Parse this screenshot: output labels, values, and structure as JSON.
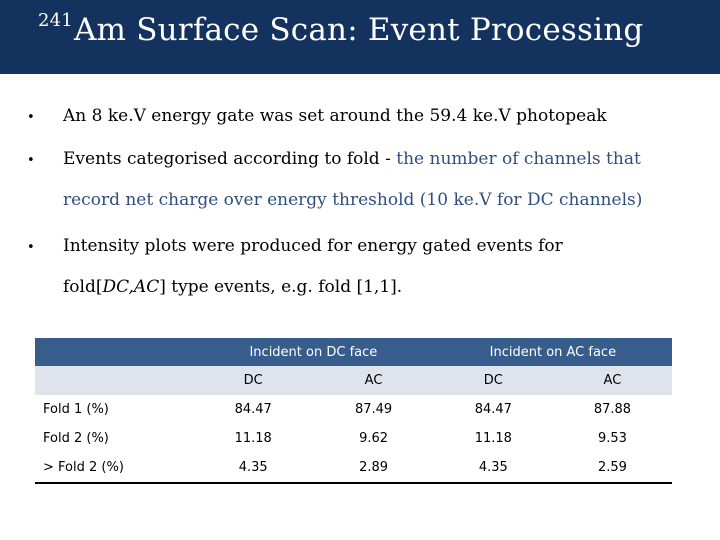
{
  "header": {
    "title_sup": "241",
    "title_main": "Am Surface Scan: Event Processing"
  },
  "bullets": {
    "b1": "An 8 ke.V energy gate was set around the 59.4 ke.V photopeak",
    "b2_part1": "Events categorised according to fold - ",
    "b2_part2": "the number of channels that",
    "b2_line2": "record net charge over energy threshold (10 ke.V for DC channels)",
    "b3_line1": "Intensity plots were produced for energy gated events for",
    "b3_line2_pre": "fold[",
    "b3_line2_ital": "DC,AC",
    "b3_line2_post": "]  type events, e.g. fold [1,1]."
  },
  "table": {
    "group_headers": [
      "Incident on DC face",
      "Incident on AC face"
    ],
    "sub_headers": [
      "DC",
      "AC",
      "DC",
      "AC"
    ],
    "rows": [
      {
        "label": "Fold 1 (%)",
        "values": [
          "84.47",
          "87.49",
          "84.47",
          "87.88"
        ]
      },
      {
        "label": "Fold 2 (%)",
        "values": [
          "11.18",
          "9.62",
          "11.18",
          "9.53"
        ]
      },
      {
        "label": "> Fold 2 (%)",
        "values": [
          "4.35",
          "2.89",
          "4.35",
          "2.59"
        ]
      }
    ]
  },
  "colors": {
    "title_bar": "#14325e",
    "accent_text": "#2e4f7e",
    "table_header": "#375d8d",
    "table_subheader": "#dfe4ec"
  }
}
